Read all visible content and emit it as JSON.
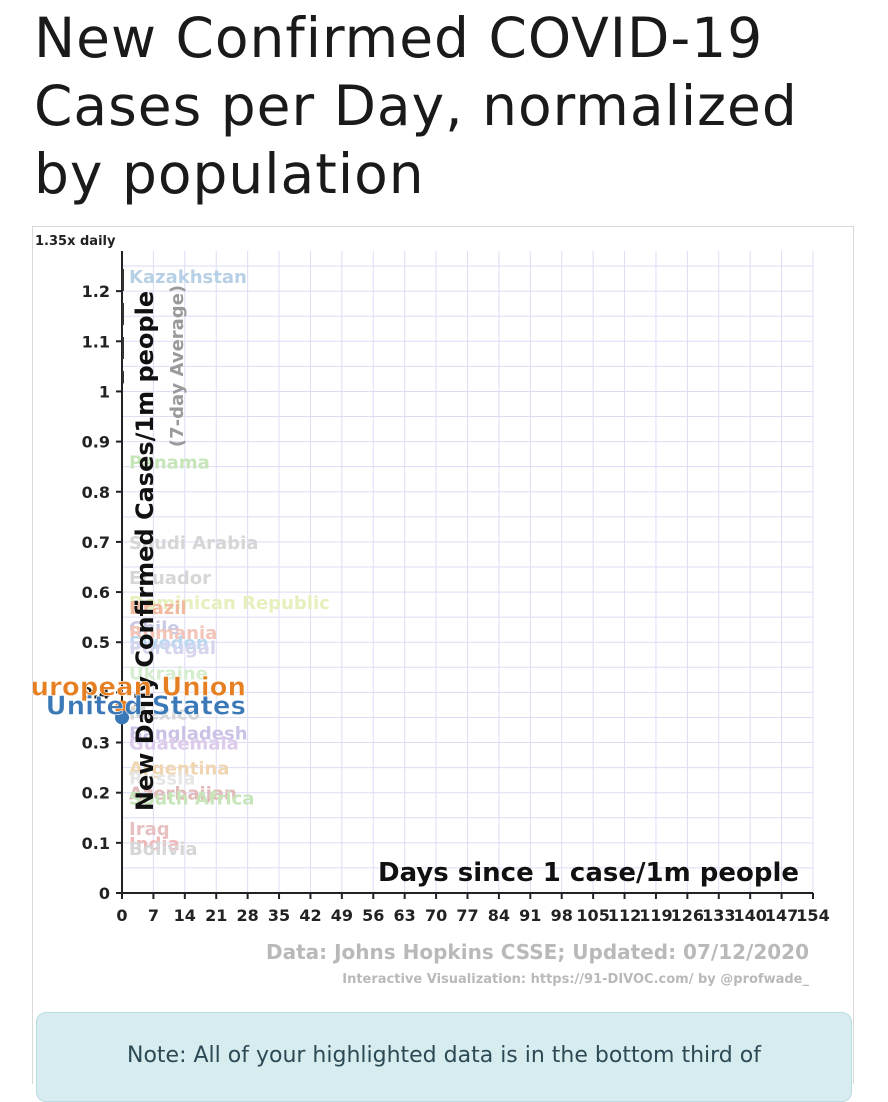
{
  "page": {
    "title": "New Confirmed COVID-19 Cases per Day, normalized by population"
  },
  "chart_data": {
    "type": "scatter",
    "title": "",
    "xlabel": "Days since 1 case/1m people",
    "ylabel": "New Daily Confirmed Cases/1m people",
    "ylabel_sub": "(7-day Average)",
    "guide_label": "1.35x daily",
    "xlim": [
      0,
      154
    ],
    "ylim": [
      0,
      1.28
    ],
    "x_ticks": [
      0,
      7,
      14,
      21,
      28,
      35,
      42,
      49,
      56,
      63,
      70,
      77,
      84,
      91,
      98,
      105,
      112,
      119,
      126,
      133,
      140,
      147,
      154
    ],
    "y_ticks": [
      0,
      0.1,
      0.2,
      0.3,
      0.4,
      0.5,
      0.6,
      0.7,
      0.8,
      0.9,
      1,
      1.1,
      1.2
    ],
    "y_tick_labels": [
      "0",
      "0.1",
      "0.2",
      "0.3",
      "0.4",
      "0.5",
      "0.6",
      "0.7",
      "0.8",
      "0.9",
      "1",
      "1.1",
      "1.2"
    ],
    "grid": true,
    "highlighted_series": [
      {
        "name": "European Union",
        "x": [
          0
        ],
        "y": [
          0.37
        ],
        "color": "#e67e22"
      },
      {
        "name": "United States",
        "x": [
          0
        ],
        "y": [
          0.35
        ],
        "color": "#3a78b8"
      }
    ],
    "background_labels": [
      {
        "name": "Kazakhstan",
        "y": 1.23,
        "color": "#b8d0e6"
      },
      {
        "name": "Panama",
        "y": 0.86,
        "color": "#c6e5b9"
      },
      {
        "name": "Saudi Arabia",
        "y": 0.7,
        "color": "#d6d6d6"
      },
      {
        "name": "Ecuador",
        "y": 0.63,
        "color": "#d6d6d6"
      },
      {
        "name": "Dominican Republic",
        "y": 0.58,
        "color": "#e6f0bd"
      },
      {
        "name": "Brazil",
        "y": 0.57,
        "color": "#f0b9a0"
      },
      {
        "name": "Chile",
        "y": 0.53,
        "color": "#c9c9e6"
      },
      {
        "name": "Romania",
        "y": 0.52,
        "color": "#f3c5b8"
      },
      {
        "name": "Sweden",
        "y": 0.5,
        "color": "#b9d7ee"
      },
      {
        "name": "Portugal",
        "y": 0.49,
        "color": "#d5d5ee"
      },
      {
        "name": "Ukraine",
        "y": 0.44,
        "color": "#d6eed0"
      },
      {
        "name": "Mexico",
        "y": 0.36,
        "color": "#d6d6d6"
      },
      {
        "name": "Bangladesh",
        "y": 0.32,
        "color": "#cbc2e6"
      },
      {
        "name": "Guatemala",
        "y": 0.3,
        "color": "#dccbea"
      },
      {
        "name": "Argentina",
        "y": 0.25,
        "color": "#f0d6b0"
      },
      {
        "name": "Russia",
        "y": 0.23,
        "color": "#e6e6e6"
      },
      {
        "name": "Azerbaijan",
        "y": 0.2,
        "color": "#e2b9b9"
      },
      {
        "name": "South Africa",
        "y": 0.19,
        "color": "#c6e5b9"
      },
      {
        "name": "Iraq",
        "y": 0.13,
        "color": "#e6c1c1"
      },
      {
        "name": "India",
        "y": 0.1,
        "color": "#f0b9b9"
      },
      {
        "name": "Bolivia",
        "y": 0.09,
        "color": "#d6d6d6"
      }
    ]
  },
  "footer": {
    "source": "Data: Johns Hopkins CSSE; Updated: 07/12/2020",
    "credit": "Interactive Visualization: https://91-DIVOC.com/ by @profwade_"
  },
  "note": {
    "text": "Note: All of your highlighted data is in the bottom third of"
  }
}
